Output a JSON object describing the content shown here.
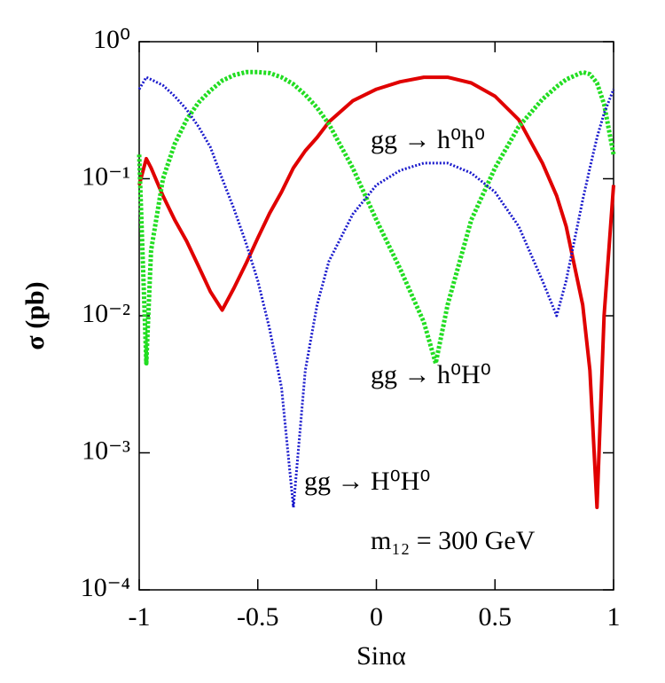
{
  "chart_data": {
    "type": "line",
    "x_label": "Sinα",
    "y_label": "σ (pb)",
    "annotations": [
      "m₁₂ = 300 GeV"
    ],
    "x": [
      -1,
      -0.97,
      -0.95,
      -0.9,
      -0.85,
      -0.8,
      -0.75,
      -0.7,
      -0.65,
      -0.6,
      -0.55,
      -0.5,
      -0.45,
      -0.4,
      -0.35,
      -0.3,
      -0.25,
      -0.2,
      -0.1,
      0,
      0.1,
      0.2,
      0.25,
      0.3,
      0.4,
      0.5,
      0.6,
      0.7,
      0.76,
      0.8,
      0.87,
      0.9,
      0.93,
      0.96,
      1
    ],
    "series": [
      {
        "name": "gg → h⁰h⁰",
        "color": "#e00000",
        "style": "solid",
        "values": [
          0.09,
          0.14,
          0.12,
          0.075,
          0.05,
          0.035,
          0.023,
          0.015,
          0.011,
          0.016,
          0.024,
          0.037,
          0.056,
          0.08,
          0.12,
          0.16,
          0.2,
          0.26,
          0.37,
          0.45,
          0.51,
          0.55,
          0.55,
          0.55,
          0.5,
          0.4,
          0.27,
          0.13,
          0.075,
          0.045,
          0.012,
          0.004,
          0.0004,
          0.01,
          0.09
        ]
      },
      {
        "name": "gg → h⁰H⁰",
        "color": "#22dd22",
        "style": "dashed",
        "values": [
          0.15,
          0.0045,
          0.03,
          0.1,
          0.18,
          0.27,
          0.36,
          0.44,
          0.52,
          0.57,
          0.6,
          0.6,
          0.59,
          0.55,
          0.49,
          0.41,
          0.33,
          0.25,
          0.12,
          0.05,
          0.022,
          0.009,
          0.0045,
          0.012,
          0.05,
          0.12,
          0.24,
          0.38,
          0.47,
          0.53,
          0.6,
          0.58,
          0.5,
          0.35,
          0.15
        ]
      },
      {
        "name": "gg → H⁰H⁰",
        "color": "#1a1acc",
        "style": "dotted",
        "values": [
          0.45,
          0.55,
          0.53,
          0.48,
          0.4,
          0.32,
          0.24,
          0.17,
          0.1,
          0.06,
          0.034,
          0.018,
          0.008,
          0.003,
          0.0004,
          0.004,
          0.012,
          0.025,
          0.055,
          0.09,
          0.115,
          0.13,
          0.13,
          0.13,
          0.11,
          0.08,
          0.045,
          0.018,
          0.01,
          0.018,
          0.07,
          0.12,
          0.2,
          0.3,
          0.45
        ]
      }
    ],
    "xlim": [
      -1,
      1
    ],
    "xticks": [
      -1,
      -0.5,
      0,
      0.5,
      1
    ],
    "ylim": [
      0.0001,
      1
    ],
    "log_y": true,
    "yticks": [
      {
        "value": 0.0001,
        "label": "10⁻⁴"
      },
      {
        "value": 0.001,
        "label": "10⁻³"
      },
      {
        "value": 0.01,
        "label": "10⁻²"
      },
      {
        "value": 0.1,
        "label": "10⁻¹"
      },
      {
        "value": 1,
        "label": "10⁰"
      }
    ]
  }
}
